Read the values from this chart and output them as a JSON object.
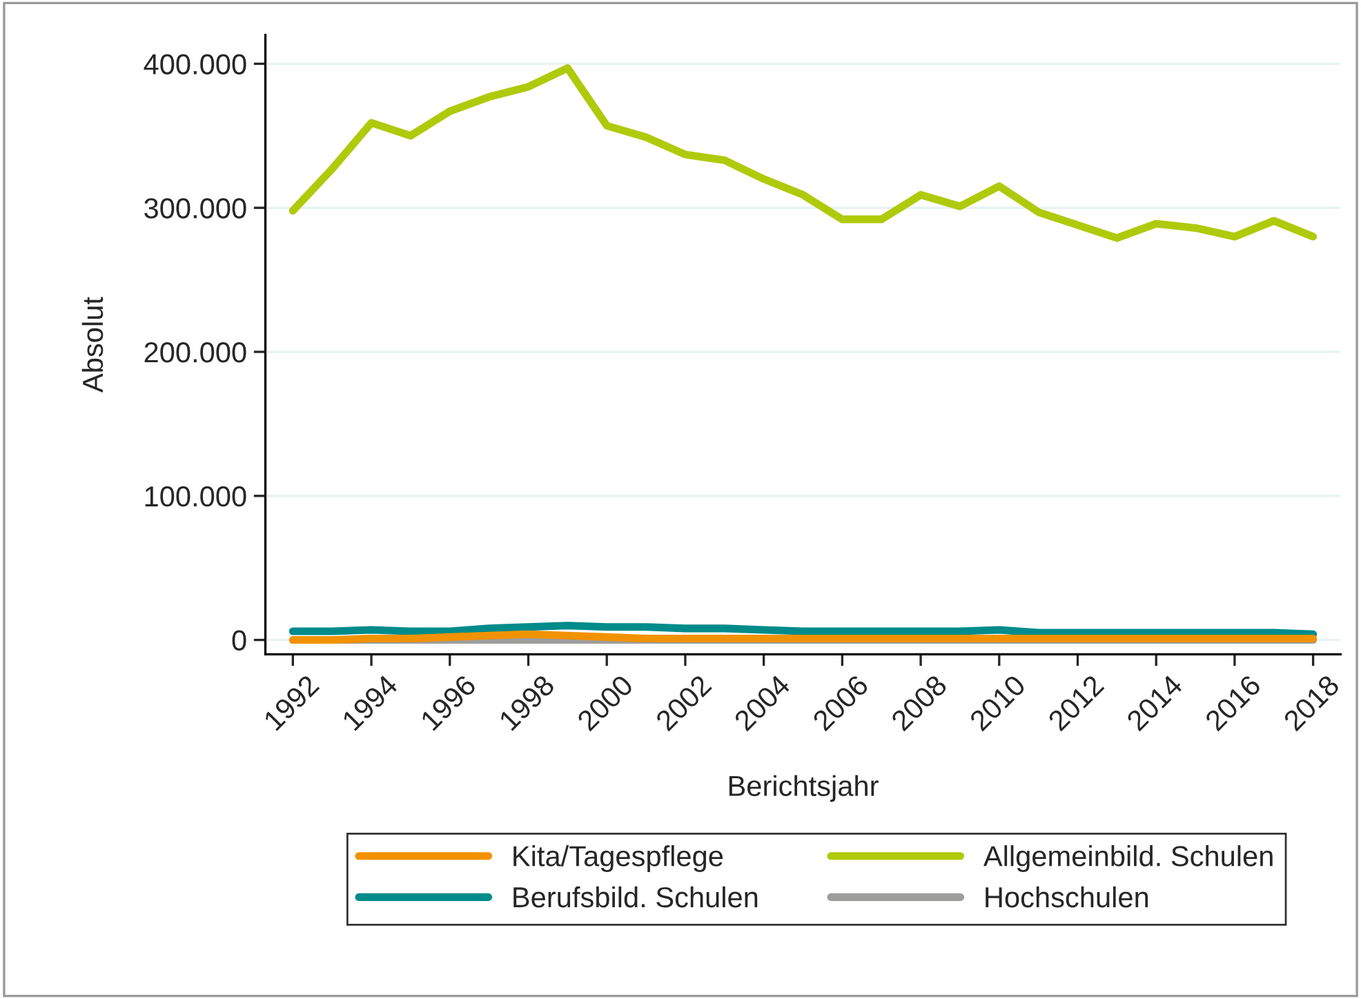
{
  "chart_data": {
    "type": "line",
    "xlabel": "Berichtsjahr",
    "ylabel": "Absolut",
    "x": [
      1992,
      1993,
      1994,
      1995,
      1996,
      1997,
      1998,
      1999,
      2000,
      2001,
      2002,
      2003,
      2004,
      2005,
      2006,
      2007,
      2008,
      2009,
      2010,
      2011,
      2012,
      2013,
      2014,
      2015,
      2016,
      2017,
      2018
    ],
    "series": [
      {
        "name": "Kita/Tagespflege",
        "color": "#f39200",
        "values": [
          0,
          0,
          1000,
          1000,
          2000,
          3000,
          4000,
          3000,
          2000,
          1000,
          1000,
          1000,
          1000,
          1000,
          1000,
          1000,
          1000,
          1000,
          1000,
          1000,
          1000,
          1000,
          1000,
          1000,
          1000,
          1000,
          1000
        ]
      },
      {
        "name": "Allgemeinbild. Schulen",
        "color": "#afca0b",
        "values": [
          298000,
          327000,
          359000,
          350000,
          367000,
          377000,
          384000,
          397000,
          357000,
          349000,
          337000,
          333000,
          320000,
          309000,
          292000,
          292000,
          309000,
          301000,
          315000,
          297000,
          288000,
          279000,
          289000,
          286000,
          280000,
          291000,
          280000
        ]
      },
      {
        "name": "Berufsbild. Schulen",
        "color": "#008b8b",
        "values": [
          6000,
          6000,
          7000,
          6000,
          6000,
          8000,
          9000,
          10000,
          9000,
          9000,
          8000,
          8000,
          7000,
          6000,
          6000,
          6000,
          6000,
          6000,
          7000,
          5000,
          5000,
          5000,
          5000,
          5000,
          5000,
          5000,
          4000
        ]
      },
      {
        "name": "Hochschulen",
        "color": "#9d9d9c",
        "values": [
          0,
          0,
          0,
          0,
          0,
          0,
          0,
          0,
          0,
          0,
          0,
          0,
          0,
          0,
          0,
          0,
          0,
          0,
          0,
          0,
          0,
          0,
          0,
          0,
          0,
          0,
          0
        ]
      }
    ],
    "xlim": [
      1991.3,
      2018.7
    ],
    "xticks": [
      1992,
      1994,
      1996,
      1998,
      2000,
      2002,
      2004,
      2006,
      2008,
      2010,
      2012,
      2014,
      2016,
      2018
    ],
    "ylim": [
      -10000,
      420000
    ],
    "yticks": [
      {
        "value": 0,
        "label": "0"
      },
      {
        "value": 100000,
        "label": "100.000"
      },
      {
        "value": 200000,
        "label": "200.000"
      },
      {
        "value": 300000,
        "label": "300.000"
      },
      {
        "value": 400000,
        "label": "400.000"
      }
    ],
    "grid": "y",
    "legend": "bottom",
    "marker": "none",
    "line_style": "solid"
  }
}
